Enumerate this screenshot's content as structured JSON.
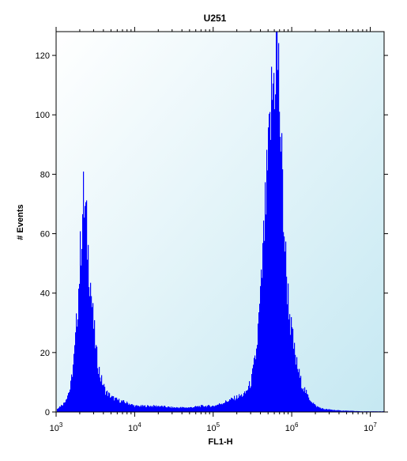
{
  "chart_data": {
    "type": "area",
    "title": "U251",
    "xlabel": "FL1-H",
    "ylabel": "# Events",
    "x_scale": "log",
    "xlim": [
      1000,
      15000000
    ],
    "ylim": [
      0,
      128
    ],
    "x_ticks": [
      {
        "value": 1000,
        "base": "10",
        "exp": "3"
      },
      {
        "value": 10000,
        "base": "10",
        "exp": "4"
      },
      {
        "value": 100000,
        "base": "10",
        "exp": "5"
      },
      {
        "value": 1000000,
        "base": "10",
        "exp": "6"
      },
      {
        "value": 10000000,
        "base": "10",
        "exp": "7"
      }
    ],
    "y_ticks": [
      0,
      20,
      40,
      60,
      80,
      100,
      120
    ],
    "grid": false,
    "background_gradient": [
      "#ffffff",
      "#c5e8f2"
    ],
    "fill_color": "#0000ff",
    "series": [
      {
        "x": [
          1000,
          1250,
          1500,
          1700,
          1900,
          2050,
          2200,
          2350,
          2500,
          2700,
          2900,
          3200,
          3600,
          4200,
          5000,
          6000,
          8000,
          10000,
          15000,
          20000,
          30000,
          50000,
          70000,
          100000,
          130000,
          160000,
          200000,
          250000,
          300000,
          350000,
          400000,
          450000,
          500000,
          550000,
          600000,
          640000,
          680000,
          720000,
          780000,
          850000,
          950000,
          1100000,
          1300000,
          1600000,
          2000000,
          2500000,
          4000000,
          8000000,
          10000000
        ],
        "y": [
          1,
          3,
          8,
          20,
          40,
          58,
          71,
          66,
          55,
          44,
          32,
          20,
          12,
          7,
          5,
          4,
          3,
          2,
          2,
          2,
          1.5,
          1.5,
          2,
          2,
          3,
          4,
          5,
          6,
          10,
          20,
          40,
          65,
          85,
          105,
          115,
          124,
          110,
          90,
          65,
          45,
          30,
          18,
          10,
          5,
          2,
          1,
          0.5,
          0.2,
          0.2
        ]
      }
    ]
  }
}
